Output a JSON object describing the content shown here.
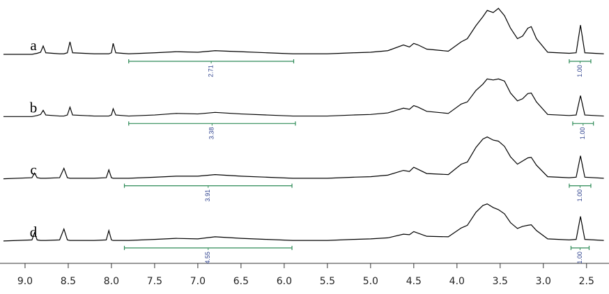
{
  "chart_data": {
    "type": "line",
    "x": [
      9.25,
      8.92,
      8.89,
      8.86,
      8.82,
      8.79,
      8.76,
      8.6,
      8.55,
      8.51,
      8.48,
      8.45,
      8.2,
      8.06,
      8.03,
      8.0,
      7.98,
      7.95,
      7.8,
      7.5,
      7.25,
      7.0,
      6.8,
      6.5,
      6.2,
      5.9,
      5.5,
      5.2,
      5.0,
      4.8,
      4.62,
      4.55,
      4.5,
      4.45,
      4.35,
      4.1,
      3.95,
      3.88,
      3.78,
      3.7,
      3.65,
      3.58,
      3.52,
      3.45,
      3.38,
      3.3,
      3.24,
      3.18,
      3.14,
      3.08,
      2.95,
      2.7,
      2.62,
      2.57,
      2.52,
      2.3
    ],
    "xlim": [
      9.29,
      2.24
    ],
    "xticks": [
      {
        "value": 9,
        "label": "9.0"
      },
      8.5,
      {
        "value": 8,
        "label": "8.0"
      },
      7.5,
      {
        "value": 7,
        "label": "7.0"
      },
      6.5,
      {
        "value": 6,
        "label": "6.0"
      },
      5.5,
      {
        "value": 5,
        "label": "5.0"
      },
      4.5,
      {
        "value": 4,
        "label": "4.0"
      },
      3.5,
      {
        "value": 3,
        "label": "3.0"
      },
      2.5
    ],
    "ylim": [
      0,
      100
    ],
    "series": [
      {
        "name": "a",
        "color": "#000000",
        "values": [
          0,
          0,
          1,
          2,
          4,
          16,
          3,
          1,
          1,
          3,
          24,
          3,
          1,
          1,
          1,
          3,
          21,
          3,
          1,
          3,
          5,
          4,
          7,
          5,
          3,
          1,
          1,
          3,
          4,
          7,
          18,
          14,
          21,
          18,
          10,
          6,
          24,
          30,
          55,
          72,
          84,
          80,
          88,
          74,
          50,
          30,
          35,
          50,
          53,
          30,
          4,
          2,
          3,
          56,
          3,
          1
        ],
        "integrals": [
          {
            "range": [
              7.8,
              5.89
            ],
            "value": 2.71
          },
          {
            "range": [
              2.7,
              2.45
            ],
            "value": 1,
            "label": "1.00"
          }
        ]
      },
      {
        "name": "b",
        "color": "#000000",
        "values": [
          0,
          0,
          1,
          2,
          4,
          12,
          3,
          1,
          1,
          3,
          18,
          3,
          1,
          1,
          1,
          3,
          15,
          3,
          1,
          3,
          6,
          5,
          8,
          5,
          3,
          1,
          1,
          3,
          4,
          7,
          16,
          14,
          21,
          18,
          10,
          6,
          24,
          28,
          50,
          62,
          72,
          70,
          72,
          68,
          45,
          30,
          34,
          44,
          45,
          28,
          4,
          2,
          3,
          40,
          3,
          1
        ],
        "integrals": [
          {
            "range": [
              7.8,
              5.87
            ],
            "value": 3.38
          },
          {
            "range": [
              2.66,
              2.42
            ],
            "value": 1,
            "label": "1.00"
          }
        ]
      },
      {
        "name": "c",
        "color": "#000000",
        "values": [
          0,
          2,
          11,
          2,
          1,
          1,
          1,
          2,
          20,
          2,
          1,
          1,
          1,
          2,
          17,
          2,
          1,
          1,
          1,
          3,
          5,
          5,
          8,
          5,
          3,
          1,
          1,
          3,
          4,
          7,
          16,
          14,
          22,
          18,
          10,
          8,
          28,
          32,
          60,
          76,
          80,
          74,
          72,
          62,
          42,
          28,
          34,
          40,
          41,
          26,
          4,
          2,
          3,
          44,
          3,
          1
        ],
        "integrals": [
          {
            "range": [
              7.85,
              5.91
            ],
            "value": 3.91
          },
          {
            "range": [
              2.7,
              2.45
            ],
            "value": 1,
            "label": "1.00"
          }
        ]
      },
      {
        "name": "d",
        "color": "#000000",
        "values": [
          0,
          2,
          16,
          2,
          1,
          1,
          1,
          2,
          23,
          2,
          1,
          1,
          1,
          2,
          20,
          2,
          1,
          1,
          1,
          3,
          5,
          4,
          8,
          5,
          3,
          1,
          1,
          3,
          4,
          6,
          13,
          12,
          18,
          15,
          9,
          8,
          25,
          30,
          55,
          68,
          71,
          64,
          60,
          52,
          35,
          24,
          28,
          30,
          31,
          20,
          4,
          2,
          3,
          47,
          3,
          1
        ],
        "integrals": [
          {
            "range": [
              7.85,
              5.91
            ],
            "value": 4.55
          },
          {
            "range": [
              2.68,
              2.47
            ],
            "value": 1,
            "label": "1.00"
          }
        ]
      }
    ],
    "integral_color": "#2e8b57"
  }
}
